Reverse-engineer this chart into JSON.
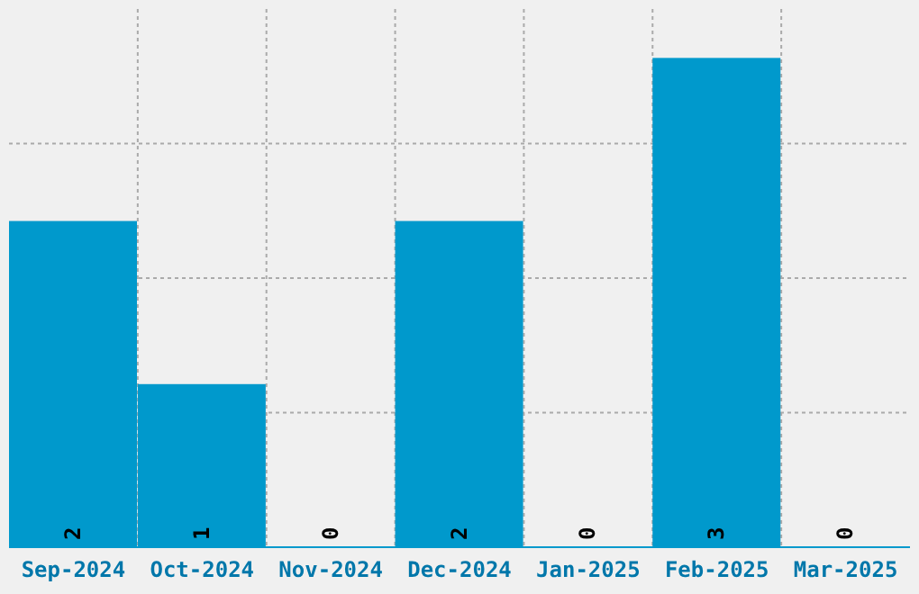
{
  "chart_data": {
    "type": "bar",
    "categories": [
      "Sep-2024",
      "Oct-2024",
      "Nov-2024",
      "Dec-2024",
      "Jan-2025",
      "Feb-2025",
      "Mar-2025"
    ],
    "values": [
      2,
      1,
      0,
      2,
      0,
      3,
      0
    ],
    "color": "#0099cc",
    "ylim": [
      0,
      3.3
    ],
    "grid": true,
    "data_labels": true,
    "tick_labels": "x"
  }
}
